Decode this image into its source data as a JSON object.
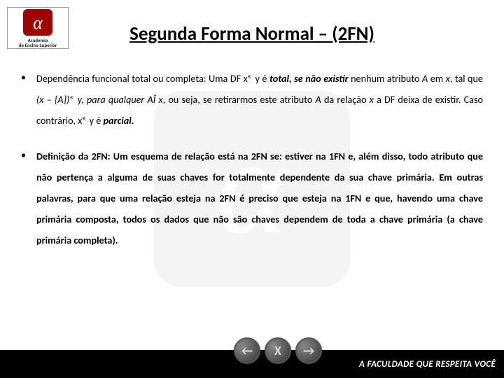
{
  "logo": {
    "line1": "Academia",
    "line2": "de Ensino Superior",
    "alpha_bg": "#a00000",
    "alpha_fg": "#ffffff"
  },
  "title": "Segunda Forma Normal – (2FN)",
  "bullets": [
    {
      "parts": [
        {
          "t": "Dependência funcional total ou completa: Uma DF x® y é ",
          "b": false,
          "i": false
        },
        {
          "t": "total, se não existir",
          "b": true,
          "i": true
        },
        {
          "t": " nenhum atributo ",
          "b": false,
          "i": false
        },
        {
          "t": "A",
          "b": false,
          "i": true
        },
        {
          "t": " em ",
          "b": false,
          "i": false
        },
        {
          "t": "x",
          "b": false,
          "i": true
        },
        {
          "t": ", tal que ",
          "b": false,
          "i": false
        },
        {
          "t": "(x – {A})® y",
          "b": false,
          "i": true
        },
        {
          "t": ", para qualquer AÎ ",
          "b": false,
          "i": true
        },
        {
          "t": "x",
          "b": false,
          "i": true
        },
        {
          "t": ", ou seja, se retirarmos este atributo ",
          "b": false,
          "i": false
        },
        {
          "t": "A",
          "b": false,
          "i": true
        },
        {
          "t": " da relação ",
          "b": false,
          "i": false
        },
        {
          "t": "x",
          "b": false,
          "i": true
        },
        {
          "t": " a DF deixa de existir. Caso contrário, x® y é ",
          "b": false,
          "i": false
        },
        {
          "t": "parcial.",
          "b": true,
          "i": true
        }
      ]
    },
    {
      "parts": [
        {
          "t": "Definição da 2FN: Um esquema de relação está na 2FN se: estiver na 1FN e, além disso, todo atributo que não pertença a alguma de suas chaves for totalmente dependente da sua chave primária. Em outras palavras, para que uma relação esteja na 2FN é preciso que esteja na 1FN e que, havendo uma chave primária composta, todos os dados que não são chaves dependem de toda a chave primária (a chave primária completa).",
          "b": true,
          "i": false
        }
      ]
    }
  ],
  "footer": {
    "tagline": "A FACULDADE QUE RESPEITA VOCÊ",
    "bg": "#000000",
    "fg": "#ffffff"
  },
  "nav": {
    "back": "←",
    "close": "X",
    "forward": "→"
  },
  "watermark": {
    "color": "#666666",
    "opacity": 0.06
  }
}
